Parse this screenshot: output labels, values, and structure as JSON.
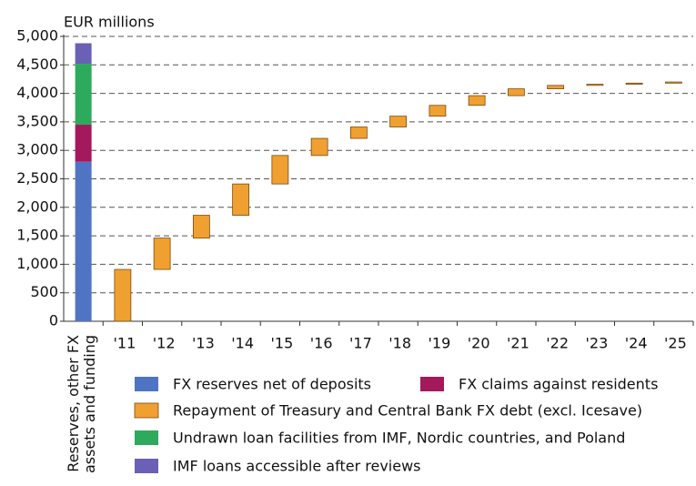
{
  "chart_data": {
    "type": "waterfall",
    "y_label": "EUR millions",
    "categories": [
      "Reserves, other FX assets and funding",
      "'11",
      "'12",
      "'13",
      "'14",
      "'15",
      "'16",
      "'17",
      "'18",
      "'19",
      "'20",
      "'21",
      "'22",
      "'23",
      "'24",
      "'25"
    ],
    "series": [
      {
        "name": "FX reserves net of deposits",
        "color": "#4f74c4",
        "values": [
          2800,
          null,
          null,
          null,
          null,
          null,
          null,
          null,
          null,
          null,
          null,
          null,
          null,
          null,
          null,
          null
        ]
      },
      {
        "name": "FX claims against residents",
        "color": "#a3195b",
        "values": [
          650,
          null,
          null,
          null,
          null,
          null,
          null,
          null,
          null,
          null,
          null,
          null,
          null,
          null,
          null,
          null
        ]
      },
      {
        "name": "Undrawn loan facilities from IMF, Nordic countries, and Poland",
        "color": "#2eaa5c",
        "values": [
          1070,
          null,
          null,
          null,
          null,
          null,
          null,
          null,
          null,
          null,
          null,
          null,
          null,
          null,
          null,
          null
        ]
      },
      {
        "name": "IMF loans accessible after reviews",
        "color": "#6a60b5",
        "values": [
          360,
          null,
          null,
          null,
          null,
          null,
          null,
          null,
          null,
          null,
          null,
          null,
          null,
          null,
          null,
          null
        ]
      },
      {
        "name": "Repayment of Treasury and Central Bank FX debt (excl. Icesave)",
        "color": "#f0a030",
        "values": [
          null,
          910,
          550,
          400,
          550,
          500,
          300,
          200,
          190,
          190,
          170,
          120,
          60,
          20,
          20,
          20
        ]
      }
    ],
    "ylim": [
      0,
      5000
    ],
    "yticks": [
      0,
      {
        "value": 500,
        "label": "500"
      },
      {
        "value": 1000,
        "label": "1,000"
      },
      {
        "value": 1500,
        "label": "1,500"
      },
      {
        "value": 2000,
        "label": "2,000"
      },
      {
        "value": 2500,
        "label": "2,500"
      },
      {
        "value": 3000,
        "label": "3,000"
      },
      {
        "value": 3500,
        "label": "3,500"
      },
      {
        "value": 4000,
        "label": "4,000"
      },
      {
        "value": 4500,
        "label": "4,500"
      },
      {
        "value": 5000,
        "label": "5,000"
      }
    ],
    "grid": true
  }
}
